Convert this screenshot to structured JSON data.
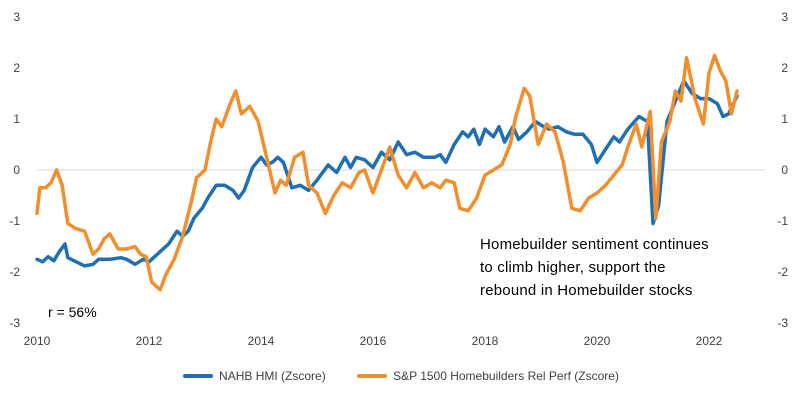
{
  "chart_data": {
    "type": "line",
    "title": "",
    "xlabel": "",
    "ylabel": "",
    "xlim": [
      2010,
      2023
    ],
    "ylim": [
      -3,
      3
    ],
    "x_ticks": [
      "2010",
      "2012",
      "2014",
      "2016",
      "2018",
      "2020",
      "2022"
    ],
    "y_ticks": [
      "3",
      "2",
      "1",
      "0",
      "-1",
      "-2",
      "-3"
    ],
    "grid": false,
    "legend_position": "bottom",
    "annotations": {
      "note_lines": [
        "Homebuilder sentiment continues",
        "to climb higher, support the",
        "rebound in Homebuilder stocks"
      ],
      "correlation": "r = 56%"
    },
    "series": [
      {
        "name": "NAHB HMI (Zscore)",
        "color": "#1f6fb5",
        "points": [
          [
            2010.0,
            -1.75
          ],
          [
            2010.1,
            -1.8
          ],
          [
            2010.2,
            -1.7
          ],
          [
            2010.3,
            -1.78
          ],
          [
            2010.4,
            -1.6
          ],
          [
            2010.5,
            -1.45
          ],
          [
            2010.55,
            -1.72
          ],
          [
            2010.7,
            -1.8
          ],
          [
            2010.85,
            -1.88
          ],
          [
            2011.0,
            -1.85
          ],
          [
            2011.1,
            -1.75
          ],
          [
            2011.3,
            -1.75
          ],
          [
            2011.5,
            -1.72
          ],
          [
            2011.6,
            -1.75
          ],
          [
            2011.75,
            -1.85
          ],
          [
            2011.9,
            -1.75
          ],
          [
            2012.0,
            -1.8
          ],
          [
            2012.1,
            -1.7
          ],
          [
            2012.2,
            -1.6
          ],
          [
            2012.35,
            -1.45
          ],
          [
            2012.5,
            -1.2
          ],
          [
            2012.6,
            -1.3
          ],
          [
            2012.7,
            -1.2
          ],
          [
            2012.8,
            -0.95
          ],
          [
            2012.95,
            -0.75
          ],
          [
            2013.05,
            -0.55
          ],
          [
            2013.2,
            -0.3
          ],
          [
            2013.35,
            -0.3
          ],
          [
            2013.5,
            -0.4
          ],
          [
            2013.6,
            -0.55
          ],
          [
            2013.7,
            -0.4
          ],
          [
            2013.85,
            0.05
          ],
          [
            2014.0,
            0.25
          ],
          [
            2014.1,
            0.1
          ],
          [
            2014.2,
            0.15
          ],
          [
            2014.3,
            0.25
          ],
          [
            2014.4,
            0.15
          ],
          [
            2014.55,
            -0.35
          ],
          [
            2014.7,
            -0.3
          ],
          [
            2014.85,
            -0.4
          ],
          [
            2015.0,
            -0.2
          ],
          [
            2015.2,
            0.1
          ],
          [
            2015.35,
            -0.05
          ],
          [
            2015.5,
            0.25
          ],
          [
            2015.6,
            0.05
          ],
          [
            2015.7,
            0.25
          ],
          [
            2015.85,
            0.2
          ],
          [
            2016.0,
            0.05
          ],
          [
            2016.15,
            0.35
          ],
          [
            2016.3,
            0.2
          ],
          [
            2016.45,
            0.55
          ],
          [
            2016.6,
            0.3
          ],
          [
            2016.75,
            0.35
          ],
          [
            2016.9,
            0.25
          ],
          [
            2017.1,
            0.25
          ],
          [
            2017.2,
            0.3
          ],
          [
            2017.3,
            0.15
          ],
          [
            2017.45,
            0.5
          ],
          [
            2017.6,
            0.75
          ],
          [
            2017.7,
            0.65
          ],
          [
            2017.8,
            0.8
          ],
          [
            2017.9,
            0.5
          ],
          [
            2018.0,
            0.8
          ],
          [
            2018.15,
            0.65
          ],
          [
            2018.25,
            0.85
          ],
          [
            2018.35,
            0.55
          ],
          [
            2018.5,
            0.85
          ],
          [
            2018.6,
            0.6
          ],
          [
            2018.75,
            0.75
          ],
          [
            2018.9,
            0.95
          ],
          [
            2019.05,
            0.85
          ],
          [
            2019.15,
            0.8
          ],
          [
            2019.3,
            0.85
          ],
          [
            2019.45,
            0.75
          ],
          [
            2019.6,
            0.7
          ],
          [
            2019.75,
            0.7
          ],
          [
            2019.9,
            0.5
          ],
          [
            2020.0,
            0.15
          ],
          [
            2020.15,
            0.4
          ],
          [
            2020.3,
            0.65
          ],
          [
            2020.4,
            0.55
          ],
          [
            2020.55,
            0.8
          ],
          [
            2020.75,
            1.05
          ],
          [
            2020.9,
            0.95
          ],
          [
            2021.0,
            -1.05
          ],
          [
            2021.1,
            -0.7
          ],
          [
            2021.25,
            0.95
          ],
          [
            2021.4,
            1.35
          ],
          [
            2021.55,
            1.75
          ],
          [
            2021.7,
            1.5
          ],
          [
            2021.85,
            1.4
          ],
          [
            2022.0,
            1.4
          ],
          [
            2022.15,
            1.3
          ],
          [
            2022.25,
            1.05
          ],
          [
            2022.35,
            1.1
          ],
          [
            2022.5,
            1.45
          ]
        ]
      },
      {
        "name": "S&P 1500 Homebuilders Rel Perf (Zscore)",
        "color": "#f28e2b",
        "points": [
          [
            2010.0,
            -0.85
          ],
          [
            2010.05,
            -0.35
          ],
          [
            2010.15,
            -0.35
          ],
          [
            2010.25,
            -0.25
          ],
          [
            2010.35,
            0.0
          ],
          [
            2010.45,
            -0.3
          ],
          [
            2010.55,
            -1.05
          ],
          [
            2010.7,
            -1.15
          ],
          [
            2010.85,
            -1.2
          ],
          [
            2011.0,
            -1.65
          ],
          [
            2011.1,
            -1.55
          ],
          [
            2011.2,
            -1.35
          ],
          [
            2011.3,
            -1.25
          ],
          [
            2011.45,
            -1.55
          ],
          [
            2011.6,
            -1.55
          ],
          [
            2011.75,
            -1.5
          ],
          [
            2011.85,
            -1.65
          ],
          [
            2011.95,
            -1.7
          ],
          [
            2012.05,
            -2.2
          ],
          [
            2012.2,
            -2.35
          ],
          [
            2012.3,
            -2.05
          ],
          [
            2012.45,
            -1.75
          ],
          [
            2012.6,
            -1.3
          ],
          [
            2012.75,
            -0.65
          ],
          [
            2012.85,
            -0.15
          ],
          [
            2013.0,
            0.0
          ],
          [
            2013.1,
            0.55
          ],
          [
            2013.2,
            1.0
          ],
          [
            2013.3,
            0.85
          ],
          [
            2013.45,
            1.3
          ],
          [
            2013.55,
            1.55
          ],
          [
            2013.65,
            1.1
          ],
          [
            2013.8,
            1.25
          ],
          [
            2013.95,
            0.95
          ],
          [
            2014.1,
            0.25
          ],
          [
            2014.25,
            -0.45
          ],
          [
            2014.35,
            -0.2
          ],
          [
            2014.45,
            -0.3
          ],
          [
            2014.6,
            0.25
          ],
          [
            2014.75,
            0.35
          ],
          [
            2014.85,
            -0.3
          ],
          [
            2015.0,
            -0.45
          ],
          [
            2015.15,
            -0.85
          ],
          [
            2015.3,
            -0.5
          ],
          [
            2015.45,
            -0.25
          ],
          [
            2015.6,
            -0.35
          ],
          [
            2015.75,
            -0.05
          ],
          [
            2015.85,
            0.0
          ],
          [
            2016.0,
            -0.45
          ],
          [
            2016.15,
            0.0
          ],
          [
            2016.3,
            0.45
          ],
          [
            2016.45,
            -0.1
          ],
          [
            2016.6,
            -0.35
          ],
          [
            2016.75,
            -0.05
          ],
          [
            2016.9,
            -0.35
          ],
          [
            2017.05,
            -0.25
          ],
          [
            2017.2,
            -0.35
          ],
          [
            2017.3,
            -0.2
          ],
          [
            2017.45,
            -0.25
          ],
          [
            2017.55,
            -0.75
          ],
          [
            2017.7,
            -0.8
          ],
          [
            2017.85,
            -0.55
          ],
          [
            2018.0,
            -0.1
          ],
          [
            2018.15,
            0.0
          ],
          [
            2018.3,
            0.1
          ],
          [
            2018.45,
            0.5
          ],
          [
            2018.55,
            1.05
          ],
          [
            2018.7,
            1.6
          ],
          [
            2018.8,
            1.45
          ],
          [
            2018.95,
            0.5
          ],
          [
            2019.1,
            0.9
          ],
          [
            2019.25,
            0.75
          ],
          [
            2019.4,
            0.15
          ],
          [
            2019.55,
            -0.75
          ],
          [
            2019.7,
            -0.8
          ],
          [
            2019.85,
            -0.55
          ],
          [
            2020.0,
            -0.45
          ],
          [
            2020.15,
            -0.3
          ],
          [
            2020.3,
            -0.1
          ],
          [
            2020.45,
            0.1
          ],
          [
            2020.55,
            0.45
          ],
          [
            2020.7,
            0.9
          ],
          [
            2020.8,
            0.45
          ],
          [
            2020.95,
            1.15
          ],
          [
            2021.05,
            -0.95
          ],
          [
            2021.15,
            0.55
          ],
          [
            2021.3,
            0.95
          ],
          [
            2021.4,
            1.55
          ],
          [
            2021.5,
            1.35
          ],
          [
            2021.6,
            2.2
          ],
          [
            2021.75,
            1.4
          ],
          [
            2021.9,
            0.9
          ],
          [
            2022.0,
            1.9
          ],
          [
            2022.1,
            2.25
          ],
          [
            2022.2,
            1.95
          ],
          [
            2022.3,
            1.75
          ],
          [
            2022.4,
            1.1
          ],
          [
            2022.5,
            1.55
          ]
        ]
      }
    ]
  }
}
